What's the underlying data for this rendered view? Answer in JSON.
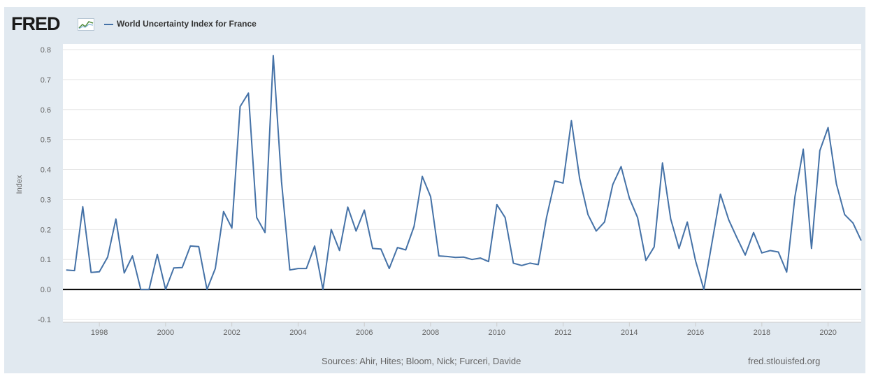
{
  "header": {
    "logo_text": "FRED",
    "logo_icon": "fred-graph-icon",
    "series_label": "World Uncertainty Index for France"
  },
  "colors": {
    "background": "#e1e9f0",
    "plot": "#ffffff",
    "series": "#4572a7",
    "zero_line": "#000000",
    "grid": "#e6e6e6"
  },
  "footer": {
    "sources": "Sources: Ahir, Hites; Bloom, Nick; Furceri, Davide",
    "site": "fred.stlouisfed.org"
  },
  "chart_data": {
    "type": "line",
    "title": "World Uncertainty Index for France",
    "xlabel": "",
    "ylabel": "Index",
    "xlim": [
      1996.9,
      2021.0
    ],
    "ylim": [
      -0.1,
      0.8
    ],
    "grid": true,
    "legend": "top-left",
    "x_ticks": [
      "1998",
      "2000",
      "2002",
      "2004",
      "2006",
      "2008",
      "2010",
      "2012",
      "2014",
      "2016",
      "2018",
      "2020"
    ],
    "y_ticks": [
      "-0.1",
      "0.0",
      "0.1",
      "0.2",
      "0.3",
      "0.4",
      "0.5",
      "0.6",
      "0.7",
      "0.8"
    ],
    "series": [
      {
        "name": "World Uncertainty Index for France",
        "x": [
          1997.0,
          1997.25,
          1997.5,
          1997.75,
          1998.0,
          1998.25,
          1998.5,
          1998.75,
          1999.0,
          1999.25,
          1999.5,
          1999.75,
          2000.0,
          2000.25,
          2000.5,
          2000.75,
          2001.0,
          2001.25,
          2001.5,
          2001.75,
          2002.0,
          2002.25,
          2002.5,
          2002.75,
          2003.0,
          2003.25,
          2003.5,
          2003.75,
          2004.0,
          2004.25,
          2004.5,
          2004.75,
          2005.0,
          2005.25,
          2005.5,
          2005.75,
          2006.0,
          2006.25,
          2006.5,
          2006.75,
          2007.0,
          2007.25,
          2007.5,
          2007.75,
          2008.0,
          2008.25,
          2008.5,
          2008.75,
          2009.0,
          2009.25,
          2009.5,
          2009.75,
          2010.0,
          2010.25,
          2010.5,
          2010.75,
          2011.0,
          2011.25,
          2011.5,
          2011.75,
          2012.0,
          2012.25,
          2012.5,
          2012.75,
          2013.0,
          2013.25,
          2013.5,
          2013.75,
          2014.0,
          2014.25,
          2014.5,
          2014.75,
          2015.0,
          2015.25,
          2015.5,
          2015.75,
          2016.0,
          2016.25,
          2016.5,
          2016.75,
          2017.0,
          2017.25,
          2017.5,
          2017.75,
          2018.0,
          2018.25,
          2018.5,
          2018.75,
          2019.0,
          2019.25,
          2019.5,
          2019.75,
          2020.0,
          2020.25,
          2020.5,
          2020.75,
          2021.0
        ],
        "values": [
          0.065,
          0.063,
          0.276,
          0.057,
          0.059,
          0.108,
          0.235,
          0.055,
          0.112,
          0.0,
          0.0,
          0.117,
          0.0,
          0.072,
          0.073,
          0.145,
          0.143,
          0.0,
          0.07,
          0.26,
          0.205,
          0.61,
          0.655,
          0.24,
          0.19,
          0.78,
          0.36,
          0.065,
          0.07,
          0.07,
          0.145,
          0.0,
          0.2,
          0.13,
          0.275,
          0.195,
          0.265,
          0.137,
          0.135,
          0.07,
          0.14,
          0.132,
          0.21,
          0.377,
          0.31,
          0.112,
          0.11,
          0.107,
          0.108,
          0.1,
          0.105,
          0.093,
          0.283,
          0.24,
          0.088,
          0.08,
          0.088,
          0.083,
          0.24,
          0.362,
          0.355,
          0.563,
          0.37,
          0.25,
          0.195,
          0.225,
          0.35,
          0.41,
          0.305,
          0.24,
          0.097,
          0.142,
          0.422,
          0.235,
          0.137,
          0.225,
          0.095,
          0.0,
          0.16,
          0.318,
          0.232,
          0.172,
          0.115,
          0.19,
          0.122,
          0.13,
          0.125,
          0.058,
          0.31,
          0.468,
          0.137,
          0.463,
          0.54,
          0.352,
          0.25,
          0.222,
          0.163
        ]
      }
    ]
  }
}
